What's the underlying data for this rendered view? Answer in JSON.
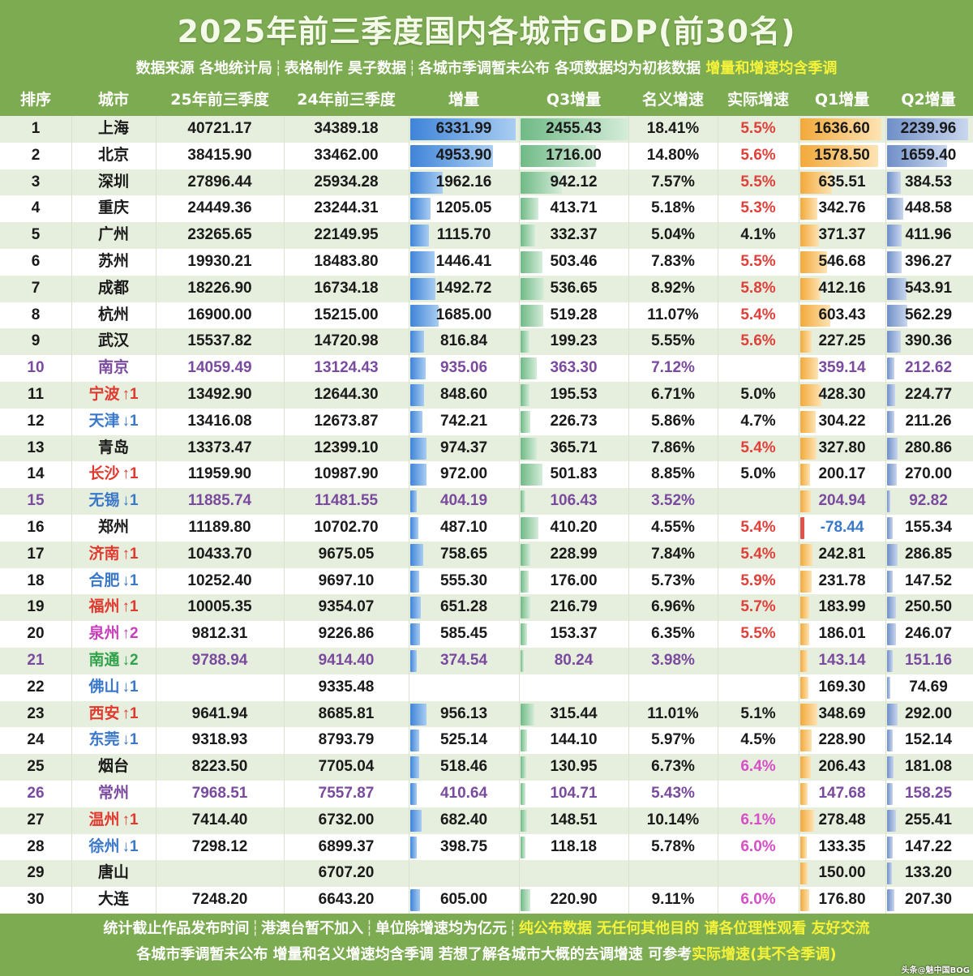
{
  "title": "2025年前三季度国内各城市GDP(前30名)",
  "subtitle": {
    "parts": [
      "数据来源 各地统计局",
      "表格制作 昊子数据",
      "各城市季调暂未公布 各项数据均为初核数据"
    ],
    "highlight": "增量和增速均含季调"
  },
  "headers": [
    "排序",
    "城市",
    "25年前三季度",
    "24年前三季度",
    "增量",
    "Q3增量",
    "名义增速",
    "实际增速",
    "Q1增量",
    "Q2增量"
  ],
  "colors": {
    "header_bg": "#7dab52",
    "odd_row": "#e6eedd",
    "up_red": "#e2392f",
    "down_blue": "#3a78c9",
    "purple": "#7a4a9e",
    "bar_increment": "#3f84d8",
    "bar_q3": "#6fba86",
    "bar_q1": "#f3a93a",
    "bar_q2": "#6f8fc8"
  },
  "rows": [
    {
      "rank": "1",
      "city": "上海",
      "v25": "40721.17",
      "v24": "34389.18",
      "inc": "6331.99",
      "q3": "2455.43",
      "nominal": "18.41%",
      "real": "5.5%",
      "q1": "1636.60",
      "q2": "2239.96",
      "real_color": "red"
    },
    {
      "rank": "2",
      "city": "北京",
      "v25": "38415.90",
      "v24": "33462.00",
      "inc": "4953.90",
      "q3": "1716.00",
      "nominal": "14.80%",
      "real": "5.6%",
      "q1": "1578.50",
      "q2": "1659.40",
      "real_color": "red"
    },
    {
      "rank": "3",
      "city": "深圳",
      "v25": "27896.44",
      "v24": "25934.28",
      "inc": "1962.16",
      "q3": "942.12",
      "nominal": "7.57%",
      "real": "5.5%",
      "q1": "635.51",
      "q2": "384.53",
      "real_color": "red"
    },
    {
      "rank": "4",
      "city": "重庆",
      "v25": "24449.36",
      "v24": "23244.31",
      "inc": "1205.05",
      "q3": "413.71",
      "nominal": "5.18%",
      "real": "5.3%",
      "q1": "342.76",
      "q2": "448.58",
      "real_color": "red"
    },
    {
      "rank": "5",
      "city": "广州",
      "v25": "23265.65",
      "v24": "22149.95",
      "inc": "1115.70",
      "q3": "332.37",
      "nominal": "5.04%",
      "real": "4.1%",
      "q1": "371.37",
      "q2": "411.96",
      "real_color": "black"
    },
    {
      "rank": "6",
      "city": "苏州",
      "v25": "19930.21",
      "v24": "18483.80",
      "inc": "1446.41",
      "q3": "503.46",
      "nominal": "7.83%",
      "real": "5.5%",
      "q1": "546.68",
      "q2": "396.27",
      "real_color": "red"
    },
    {
      "rank": "7",
      "city": "成都",
      "v25": "18226.90",
      "v24": "16734.18",
      "inc": "1492.72",
      "q3": "536.65",
      "nominal": "8.92%",
      "real": "5.8%",
      "q1": "412.16",
      "q2": "543.91",
      "real_color": "red"
    },
    {
      "rank": "8",
      "city": "杭州",
      "v25": "16900.00",
      "v24": "15215.00",
      "inc": "1685.00",
      "q3": "519.28",
      "nominal": "11.07%",
      "real": "5.4%",
      "q1": "603.43",
      "q2": "562.29",
      "real_color": "red"
    },
    {
      "rank": "9",
      "city": "武汉",
      "v25": "15537.82",
      "v24": "14720.98",
      "inc": "816.84",
      "q3": "199.23",
      "nominal": "5.55%",
      "real": "5.6%",
      "q1": "227.25",
      "q2": "390.36",
      "real_color": "red"
    },
    {
      "rank": "10",
      "city": "南京",
      "v25": "14059.49",
      "v24": "13124.43",
      "inc": "935.06",
      "q3": "363.30",
      "nominal": "7.12%",
      "real": "",
      "q1": "359.14",
      "q2": "212.62",
      "row_color": "purple",
      "city_color": "purple"
    },
    {
      "rank": "11",
      "city": "宁波",
      "change": "↑1",
      "v25": "13492.90",
      "v24": "12644.30",
      "inc": "848.60",
      "q3": "195.53",
      "nominal": "6.71%",
      "real": "5.0%",
      "q1": "428.30",
      "q2": "224.77",
      "city_color": "red",
      "real_color": "black"
    },
    {
      "rank": "12",
      "city": "天津",
      "change": "↓1",
      "v25": "13416.08",
      "v24": "12673.87",
      "inc": "742.21",
      "q3": "226.73",
      "nominal": "5.86%",
      "real": "4.7%",
      "q1": "304.22",
      "q2": "211.26",
      "city_color": "blue",
      "real_color": "black"
    },
    {
      "rank": "13",
      "city": "青岛",
      "v25": "13373.47",
      "v24": "12399.10",
      "inc": "974.37",
      "q3": "365.71",
      "nominal": "7.86%",
      "real": "5.4%",
      "q1": "327.80",
      "q2": "280.86",
      "real_color": "red"
    },
    {
      "rank": "14",
      "city": "长沙",
      "change": "↑1",
      "v25": "11959.90",
      "v24": "10987.90",
      "inc": "972.00",
      "q3": "501.83",
      "nominal": "8.85%",
      "real": "5.0%",
      "q1": "200.17",
      "q2": "270.00",
      "city_color": "red",
      "real_color": "black"
    },
    {
      "rank": "15",
      "city": "无锡",
      "change": "↓1",
      "v25": "11885.74",
      "v24": "11481.55",
      "inc": "404.19",
      "q3": "106.43",
      "nominal": "3.52%",
      "real": "",
      "q1": "204.94",
      "q2": "92.82",
      "row_color": "purple",
      "city_color": "blue"
    },
    {
      "rank": "16",
      "city": "郑州",
      "v25": "11189.80",
      "v24": "10702.70",
      "inc": "487.10",
      "q3": "410.20",
      "nominal": "4.55%",
      "real": "5.4%",
      "q1": "-78.44",
      "q2": "155.34",
      "real_color": "red",
      "q1_color": "blue"
    },
    {
      "rank": "17",
      "city": "济南",
      "change": "↑1",
      "v25": "10433.70",
      "v24": "9675.05",
      "inc": "758.65",
      "q3": "228.99",
      "nominal": "7.84%",
      "real": "5.4%",
      "q1": "242.81",
      "q2": "286.85",
      "city_color": "red",
      "real_color": "red"
    },
    {
      "rank": "18",
      "city": "合肥",
      "change": "↓1",
      "v25": "10252.40",
      "v24": "9697.10",
      "inc": "555.30",
      "q3": "176.00",
      "nominal": "5.73%",
      "real": "5.9%",
      "q1": "231.78",
      "q2": "147.52",
      "city_color": "blue",
      "real_color": "red"
    },
    {
      "rank": "19",
      "city": "福州",
      "change": "↑1",
      "v25": "10005.35",
      "v24": "9354.07",
      "inc": "651.28",
      "q3": "216.79",
      "nominal": "6.96%",
      "real": "5.7%",
      "q1": "183.99",
      "q2": "250.50",
      "city_color": "red",
      "real_color": "red"
    },
    {
      "rank": "20",
      "city": "泉州",
      "change": "↑2",
      "v25": "9812.31",
      "v24": "9226.86",
      "inc": "585.45",
      "q3": "153.37",
      "nominal": "6.35%",
      "real": "5.5%",
      "q1": "186.01",
      "q2": "246.07",
      "city_color": "magenta",
      "real_color": "red"
    },
    {
      "rank": "21",
      "city": "南通",
      "change": "↓2",
      "v25": "9788.94",
      "v24": "9414.40",
      "inc": "374.54",
      "q3": "80.24",
      "nominal": "3.98%",
      "real": "",
      "q1": "143.14",
      "q2": "151.16",
      "row_color": "purple",
      "city_color": "green"
    },
    {
      "rank": "22",
      "city": "佛山",
      "change": "↓1",
      "v25": "",
      "v24": "9335.48",
      "inc": "",
      "q3": "",
      "nominal": "",
      "real": "",
      "q1": "169.30",
      "q2": "74.69",
      "city_color": "blue"
    },
    {
      "rank": "23",
      "city": "西安",
      "change": "↑1",
      "v25": "9641.94",
      "v24": "8685.81",
      "inc": "956.13",
      "q3": "315.44",
      "nominal": "11.01%",
      "real": "5.1%",
      "q1": "348.69",
      "q2": "292.00",
      "city_color": "red",
      "real_color": "black"
    },
    {
      "rank": "24",
      "city": "东莞",
      "change": "↓1",
      "v25": "9318.93",
      "v24": "8793.79",
      "inc": "525.14",
      "q3": "144.10",
      "nominal": "5.97%",
      "real": "4.5%",
      "q1": "228.90",
      "q2": "152.14",
      "city_color": "blue",
      "real_color": "black"
    },
    {
      "rank": "25",
      "city": "烟台",
      "v25": "8223.50",
      "v24": "7705.04",
      "inc": "518.46",
      "q3": "130.95",
      "nominal": "6.73%",
      "real": "6.4%",
      "q1": "206.43",
      "q2": "181.08",
      "real_color": "magenta"
    },
    {
      "rank": "26",
      "city": "常州",
      "v25": "7968.51",
      "v24": "7557.87",
      "inc": "410.64",
      "q3": "104.71",
      "nominal": "5.43%",
      "real": "",
      "q1": "147.68",
      "q2": "158.25",
      "row_color": "purple",
      "city_color": "purple"
    },
    {
      "rank": "27",
      "city": "温州",
      "change": "↑1",
      "v25": "7414.40",
      "v24": "6732.00",
      "inc": "682.40",
      "q3": "148.51",
      "nominal": "10.14%",
      "real": "6.1%",
      "q1": "278.48",
      "q2": "255.41",
      "city_color": "red",
      "real_color": "magenta"
    },
    {
      "rank": "28",
      "city": "徐州",
      "change": "↓1",
      "v25": "7298.12",
      "v24": "6899.37",
      "inc": "398.75",
      "q3": "118.18",
      "nominal": "5.78%",
      "real": "6.0%",
      "q1": "133.35",
      "q2": "147.22",
      "city_color": "blue",
      "real_color": "magenta"
    },
    {
      "rank": "29",
      "city": "唐山",
      "v25": "",
      "v24": "6707.20",
      "inc": "",
      "q3": "",
      "nominal": "",
      "real": "",
      "q1": "150.00",
      "q2": "133.20"
    },
    {
      "rank": "30",
      "city": "大连",
      "v25": "7248.20",
      "v24": "6643.20",
      "inc": "605.00",
      "q3": "220.90",
      "nominal": "9.11%",
      "real": "6.0%",
      "q1": "176.80",
      "q2": "207.30",
      "real_color": "magenta"
    }
  ],
  "footer": {
    "line1_parts": [
      "统计截止作品发布时间",
      "港澳台暂不加入",
      "单位除增速均为亿元"
    ],
    "line1_highlight": "纯公布数据 无任何其他目的 请各位理性观看 友好交流",
    "line2": "各城市季调暂未公布 增量和名义增速均含季调 若想了解各城市大概的去调增速 可参考",
    "line2_highlight": "实际增速(其不含季调)"
  },
  "watermark": "头条@魅中国BOG"
}
